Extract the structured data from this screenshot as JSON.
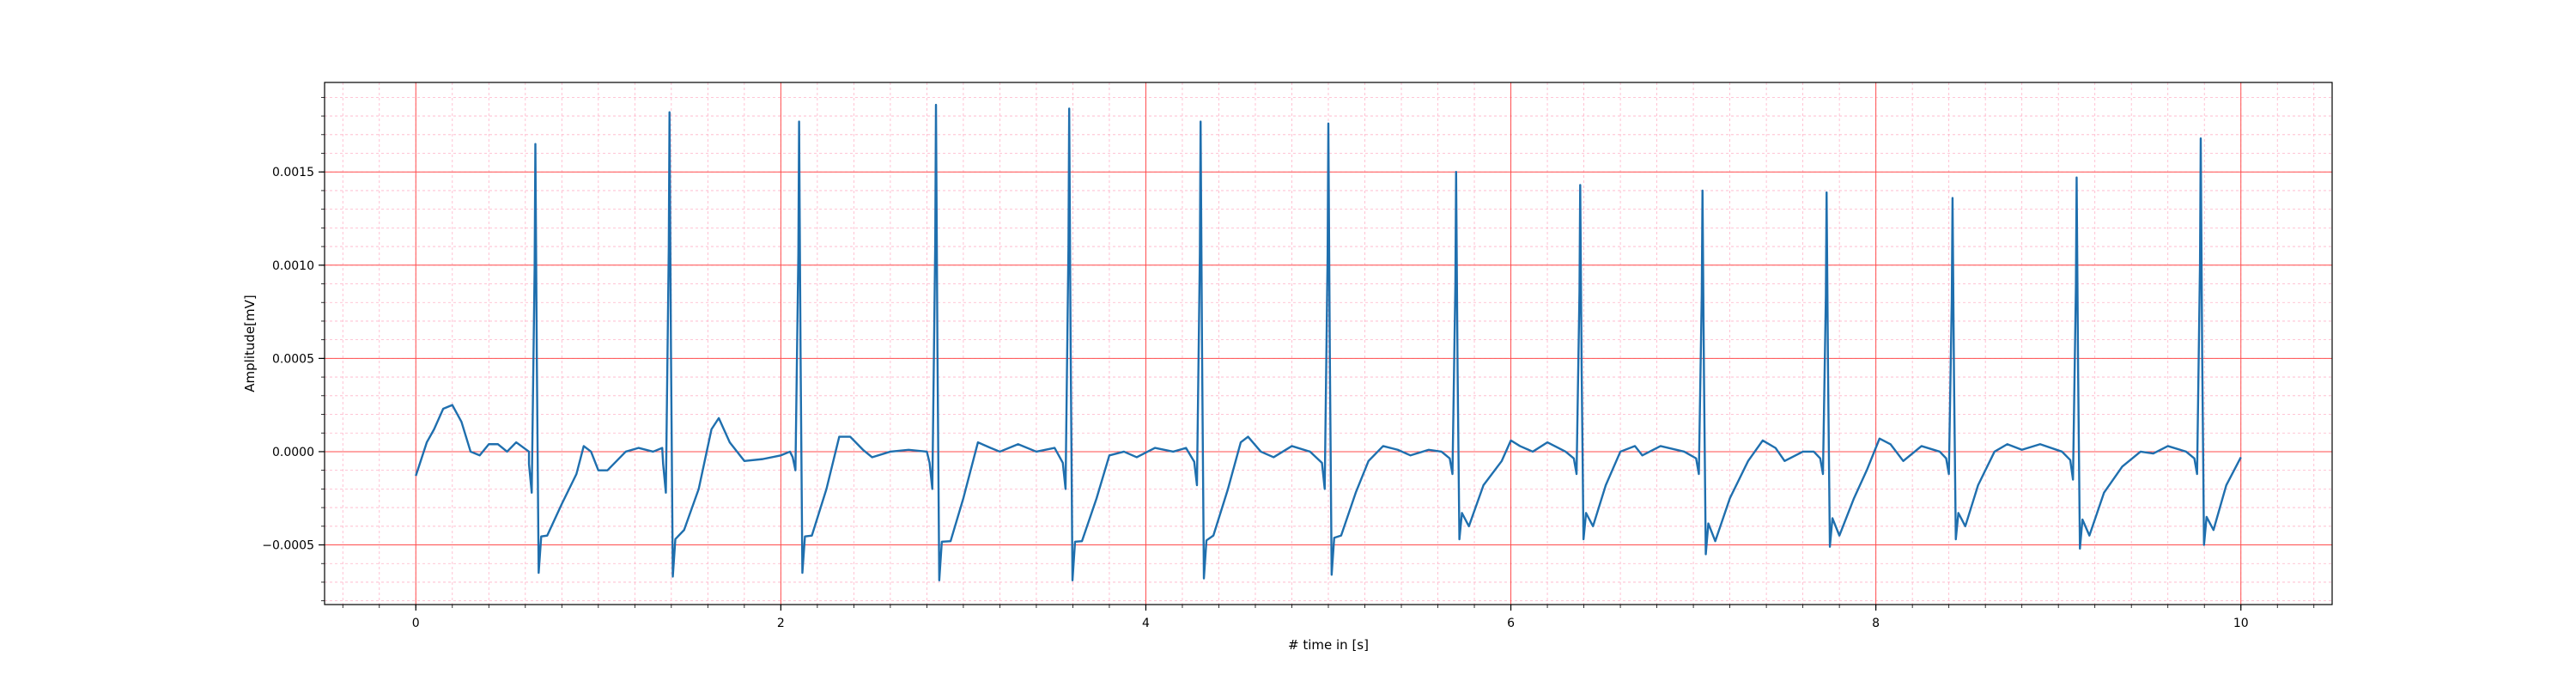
{
  "chart_data": {
    "type": "line",
    "title": "",
    "xlabel": "# time in [s]",
    "ylabel": "Amplitude[mV]",
    "xlim": [
      -0.5,
      10.5
    ],
    "ylim": [
      -0.00082,
      0.00198
    ],
    "x_ticks": [
      0,
      2,
      4,
      6,
      8,
      10
    ],
    "x_tick_labels": [
      "0",
      "2",
      "4",
      "6",
      "8",
      "10"
    ],
    "y_ticks": [
      -0.0005,
      0.0,
      0.0005,
      0.001,
      0.0015
    ],
    "y_tick_labels": [
      "−0.0005",
      "0.0000",
      "0.0005",
      "0.0010",
      "0.0015"
    ],
    "grid": {
      "major": true,
      "minor": true,
      "major_color": "#ff4d4d",
      "minor_color": "#ffb3c8"
    },
    "line_color": "#1f6fae",
    "legend": "none",
    "series": [
      {
        "t_start": 0,
        "t_end": 10,
        "baseline_note_free": true,
        "beats": [
          {
            "t": 0.655,
            "r": 0.00165,
            "s": -0.00065,
            "q": -0.00022
          },
          {
            "t": 1.39,
            "r": 0.00182,
            "s": -0.00067,
            "q": -0.00022
          },
          {
            "t": 2.1,
            "r": 0.00177,
            "s": -0.00065,
            "q": -0.0001
          },
          {
            "t": 2.85,
            "r": 0.00186,
            "s": -0.00069,
            "q": -0.0002
          },
          {
            "t": 3.58,
            "r": 0.00184,
            "s": -0.00069,
            "q": -0.0002
          },
          {
            "t": 4.3,
            "r": 0.00177,
            "s": -0.00068,
            "q": -0.00018
          },
          {
            "t": 5.0,
            "r": 0.00176,
            "s": -0.00066,
            "q": -0.0002
          },
          {
            "t": 5.7,
            "r": 0.0015,
            "s": -0.00047,
            "q": -0.00012
          },
          {
            "t": 6.38,
            "r": 0.00143,
            "s": -0.00047,
            "q": -0.00012
          },
          {
            "t": 7.05,
            "r": 0.0014,
            "s": -0.00055,
            "q": -0.00012
          },
          {
            "t": 7.73,
            "r": 0.00139,
            "s": -0.00051,
            "q": -0.00012
          },
          {
            "t": 8.42,
            "r": 0.00136,
            "s": -0.00047,
            "q": -0.00012
          },
          {
            "t": 9.1,
            "r": 0.00147,
            "s": -0.00052,
            "q": -0.00015
          },
          {
            "t": 9.78,
            "r": 0.00168,
            "s": -0.0005,
            "q": -0.00012
          }
        ],
        "baseline_points": [
          [
            0.0,
            -0.00013
          ],
          [
            0.06,
            5e-05
          ],
          [
            0.1,
            0.00012
          ],
          [
            0.15,
            0.00023
          ],
          [
            0.2,
            0.00025
          ],
          [
            0.25,
            0.00016
          ],
          [
            0.3,
            0.0
          ],
          [
            0.35,
            -2e-05
          ],
          [
            0.4,
            4e-05
          ],
          [
            0.45,
            4e-05
          ],
          [
            0.5,
            0.0
          ],
          [
            0.55,
            5e-05
          ],
          [
            0.62,
            0.0
          ],
          [
            0.72,
            -0.00045
          ],
          [
            0.8,
            -0.00028
          ],
          [
            0.88,
            -0.00012
          ],
          [
            0.92,
            3e-05
          ],
          [
            0.96,
            0.0
          ],
          [
            1.0,
            -0.0001
          ],
          [
            1.05,
            -0.0001
          ],
          [
            1.15,
            0.0
          ],
          [
            1.22,
            2e-05
          ],
          [
            1.3,
            0.0
          ],
          [
            1.35,
            2e-05
          ],
          [
            1.47,
            -0.00042
          ],
          [
            1.55,
            -0.0002
          ],
          [
            1.62,
            0.00012
          ],
          [
            1.66,
            0.00018
          ],
          [
            1.72,
            5e-05
          ],
          [
            1.8,
            -5e-05
          ],
          [
            1.9,
            -4e-05
          ],
          [
            2.0,
            -2e-05
          ],
          [
            2.05,
            0.0
          ],
          [
            2.17,
            -0.00045
          ],
          [
            2.25,
            -0.0002
          ],
          [
            2.32,
            8e-05
          ],
          [
            2.38,
            8e-05
          ],
          [
            2.45,
            1e-05
          ],
          [
            2.5,
            -3e-05
          ],
          [
            2.6,
            0.0
          ],
          [
            2.7,
            1e-05
          ],
          [
            2.8,
            0.0
          ],
          [
            2.93,
            -0.00048
          ],
          [
            3.0,
            -0.00025
          ],
          [
            3.08,
            5e-05
          ],
          [
            3.15,
            2e-05
          ],
          [
            3.2,
            0.0
          ],
          [
            3.3,
            4e-05
          ],
          [
            3.4,
            0.0
          ],
          [
            3.5,
            2e-05
          ],
          [
            3.65,
            -0.00048
          ],
          [
            3.73,
            -0.00025
          ],
          [
            3.8,
            -2e-05
          ],
          [
            3.88,
            0.0
          ],
          [
            3.95,
            -3e-05
          ],
          [
            4.05,
            2e-05
          ],
          [
            4.15,
            0.0
          ],
          [
            4.22,
            2e-05
          ],
          [
            4.37,
            -0.00045
          ],
          [
            4.45,
            -0.0002
          ],
          [
            4.52,
            5e-05
          ],
          [
            4.56,
            8e-05
          ],
          [
            4.63,
            0.0
          ],
          [
            4.7,
            -3e-05
          ],
          [
            4.8,
            3e-05
          ],
          [
            4.9,
            0.0
          ],
          [
            5.07,
            -0.00045
          ],
          [
            5.15,
            -0.00022
          ],
          [
            5.22,
            -5e-05
          ],
          [
            5.3,
            3e-05
          ],
          [
            5.38,
            1e-05
          ],
          [
            5.45,
            -2e-05
          ],
          [
            5.55,
            1e-05
          ],
          [
            5.62,
            0.0
          ],
          [
            5.77,
            -0.0004
          ],
          [
            5.85,
            -0.00018
          ],
          [
            5.95,
            -5e-05
          ],
          [
            6.0,
            6e-05
          ],
          [
            6.05,
            3e-05
          ],
          [
            6.12,
            0.0
          ],
          [
            6.2,
            5e-05
          ],
          [
            6.3,
            0.0
          ],
          [
            6.45,
            -0.0004
          ],
          [
            6.52,
            -0.00018
          ],
          [
            6.6,
            0.0
          ],
          [
            6.68,
            3e-05
          ],
          [
            6.72,
            -2e-05
          ],
          [
            6.82,
            3e-05
          ],
          [
            6.95,
            0.0
          ],
          [
            7.12,
            -0.00048
          ],
          [
            7.2,
            -0.00025
          ],
          [
            7.3,
            -5e-05
          ],
          [
            7.38,
            6e-05
          ],
          [
            7.45,
            2e-05
          ],
          [
            7.5,
            -5e-05
          ],
          [
            7.6,
            0.0
          ],
          [
            7.66,
            0.0
          ],
          [
            7.8,
            -0.00045
          ],
          [
            7.88,
            -0.00025
          ],
          [
            7.95,
            -0.0001
          ],
          [
            8.02,
            7e-05
          ],
          [
            8.08,
            4e-05
          ],
          [
            8.15,
            -5e-05
          ],
          [
            8.25,
            3e-05
          ],
          [
            8.35,
            0.0
          ],
          [
            8.49,
            -0.0004
          ],
          [
            8.56,
            -0.00018
          ],
          [
            8.65,
            0.0
          ],
          [
            8.72,
            4e-05
          ],
          [
            8.8,
            1e-05
          ],
          [
            8.9,
            4e-05
          ],
          [
            9.02,
            0.0
          ],
          [
            9.17,
            -0.00045
          ],
          [
            9.25,
            -0.00022
          ],
          [
            9.35,
            -8e-05
          ],
          [
            9.45,
            0.0
          ],
          [
            9.52,
            -1e-05
          ],
          [
            9.6,
            3e-05
          ],
          [
            9.7,
            0.0
          ],
          [
            9.85,
            -0.00042
          ],
          [
            9.92,
            -0.00018
          ],
          [
            10.0,
            -3e-05
          ]
        ]
      }
    ]
  }
}
